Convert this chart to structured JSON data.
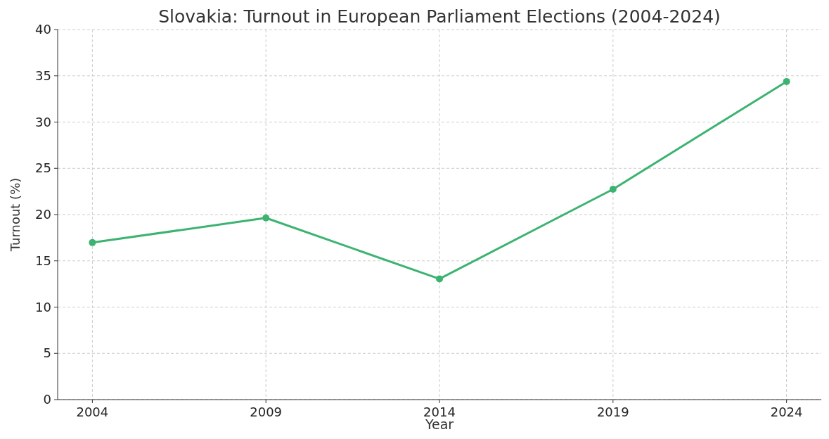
{
  "chart_data": {
    "type": "line",
    "title": "Slovakia: Turnout in European Parliament Elections (2004-2024)",
    "xlabel": "Year",
    "ylabel": "Turnout (%)",
    "x": [
      2004,
      2009,
      2014,
      2019,
      2024
    ],
    "series": [
      {
        "color": "#3cb371",
        "values": [
          16.97,
          19.64,
          13.05,
          22.74,
          34.38
        ]
      }
    ],
    "xlim": [
      2003,
      2025
    ],
    "xticks": [
      2004,
      2009,
      2014,
      2019,
      2024
    ],
    "ylim": [
      0,
      40
    ],
    "yticks": [
      0,
      5,
      10,
      15,
      20,
      25,
      30,
      35,
      40
    ],
    "grid": true,
    "marker": "circle",
    "line_style": "solid"
  }
}
